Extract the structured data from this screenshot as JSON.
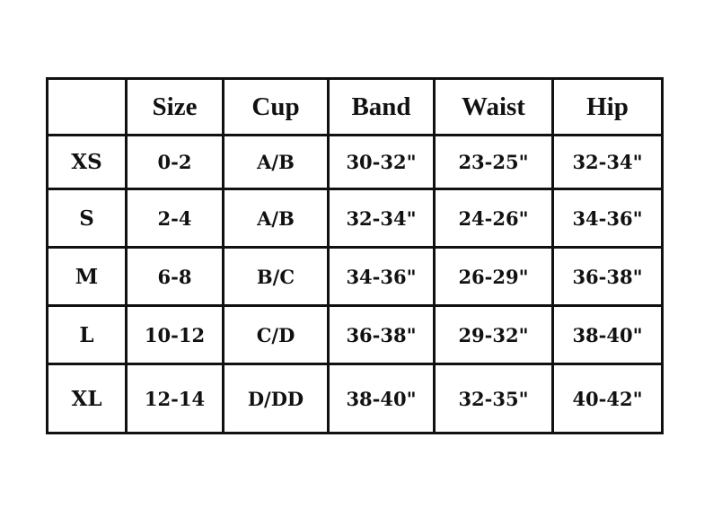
{
  "table": {
    "headers": [
      "",
      "Size",
      "Cup",
      "Band",
      "Waist",
      "Hip"
    ],
    "rows": [
      {
        "label": "XS",
        "cells": [
          "0-2",
          "A/B",
          "30-32\"",
          "23-25\"",
          "32-34\""
        ]
      },
      {
        "label": "S",
        "cells": [
          "2-4",
          "A/B",
          "32-34\"",
          "24-26\"",
          "34-36\""
        ]
      },
      {
        "label": "M",
        "cells": [
          "6-8",
          "B/C",
          "34-36\"",
          "26-29\"",
          "36-38\""
        ]
      },
      {
        "label": "L",
        "cells": [
          "10-12",
          "C/D",
          "36-38\"",
          "29-32\"",
          "38-40\""
        ]
      },
      {
        "label": "XL",
        "cells": [
          "12-14",
          "D/DD",
          "38-40\"",
          "32-35\"",
          "40-42\""
        ]
      }
    ]
  }
}
